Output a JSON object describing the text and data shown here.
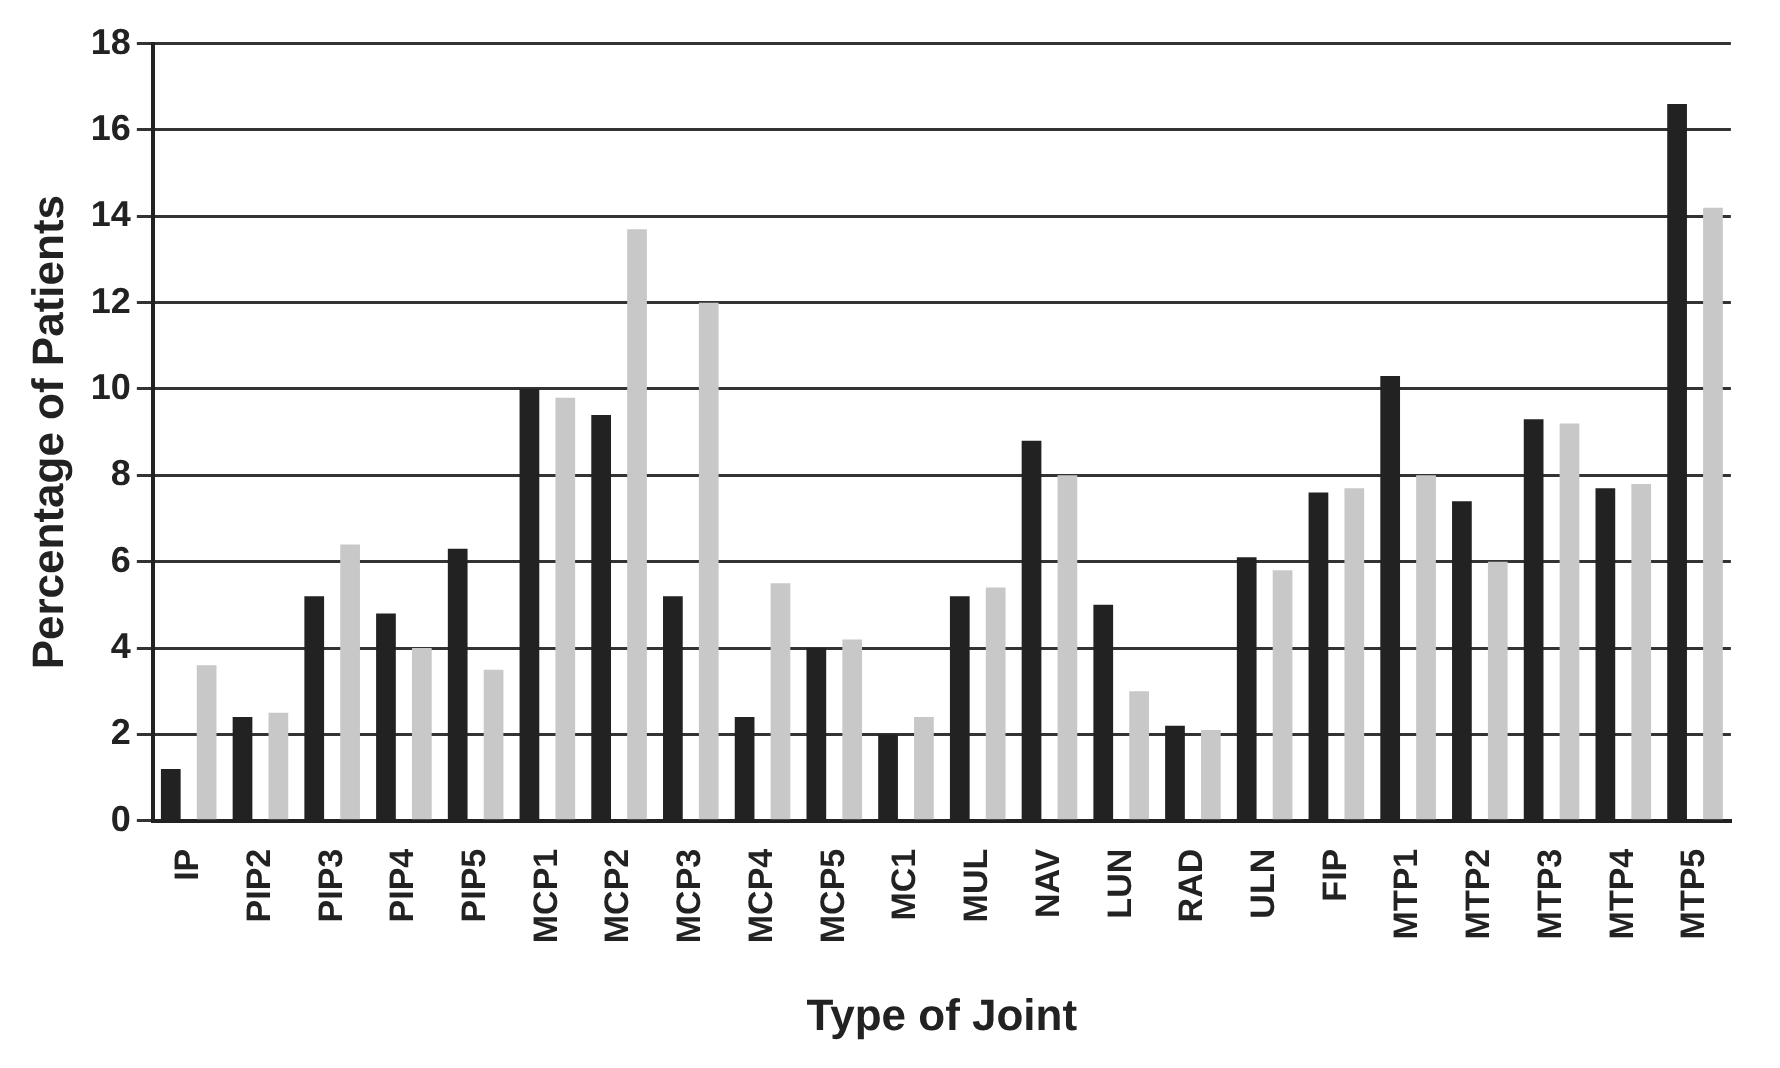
{
  "chart_data": {
    "type": "bar",
    "xlabel": "Type of Joint",
    "ylabel": "Percentage of Patients",
    "categories": [
      "IP",
      "PIP2",
      "PIP3",
      "PIP4",
      "PIP5",
      "MCP1",
      "MCP2",
      "MCP3",
      "MCP4",
      "MCP5",
      "MC1",
      "MUL",
      "NAV",
      "LUN",
      "RAD",
      "ULN",
      "FIP",
      "MTP1",
      "MTP2",
      "MTP3",
      "MTP4",
      "MTP5"
    ],
    "series": [
      {
        "color": "#222222",
        "values": [
          1.2,
          2.4,
          5.2,
          4.8,
          6.3,
          10.0,
          9.4,
          5.2,
          2.4,
          4.0,
          2.0,
          5.2,
          8.8,
          5.0,
          2.2,
          6.1,
          7.6,
          10.3,
          7.4,
          9.3,
          7.7,
          16.6
        ]
      },
      {
        "color": "#c8c8c8",
        "values": [
          3.6,
          2.5,
          6.4,
          4.0,
          3.5,
          9.8,
          13.7,
          12.0,
          5.5,
          4.2,
          2.4,
          5.4,
          8.0,
          3.0,
          2.1,
          5.8,
          7.7,
          8.0,
          6.0,
          9.2,
          7.8,
          14.2
        ]
      }
    ],
    "ylim": [
      0,
      18
    ],
    "yticks": [
      0,
      2,
      4,
      6,
      8,
      10,
      12,
      14,
      16,
      18
    ],
    "grid": "y",
    "legend": false
  }
}
